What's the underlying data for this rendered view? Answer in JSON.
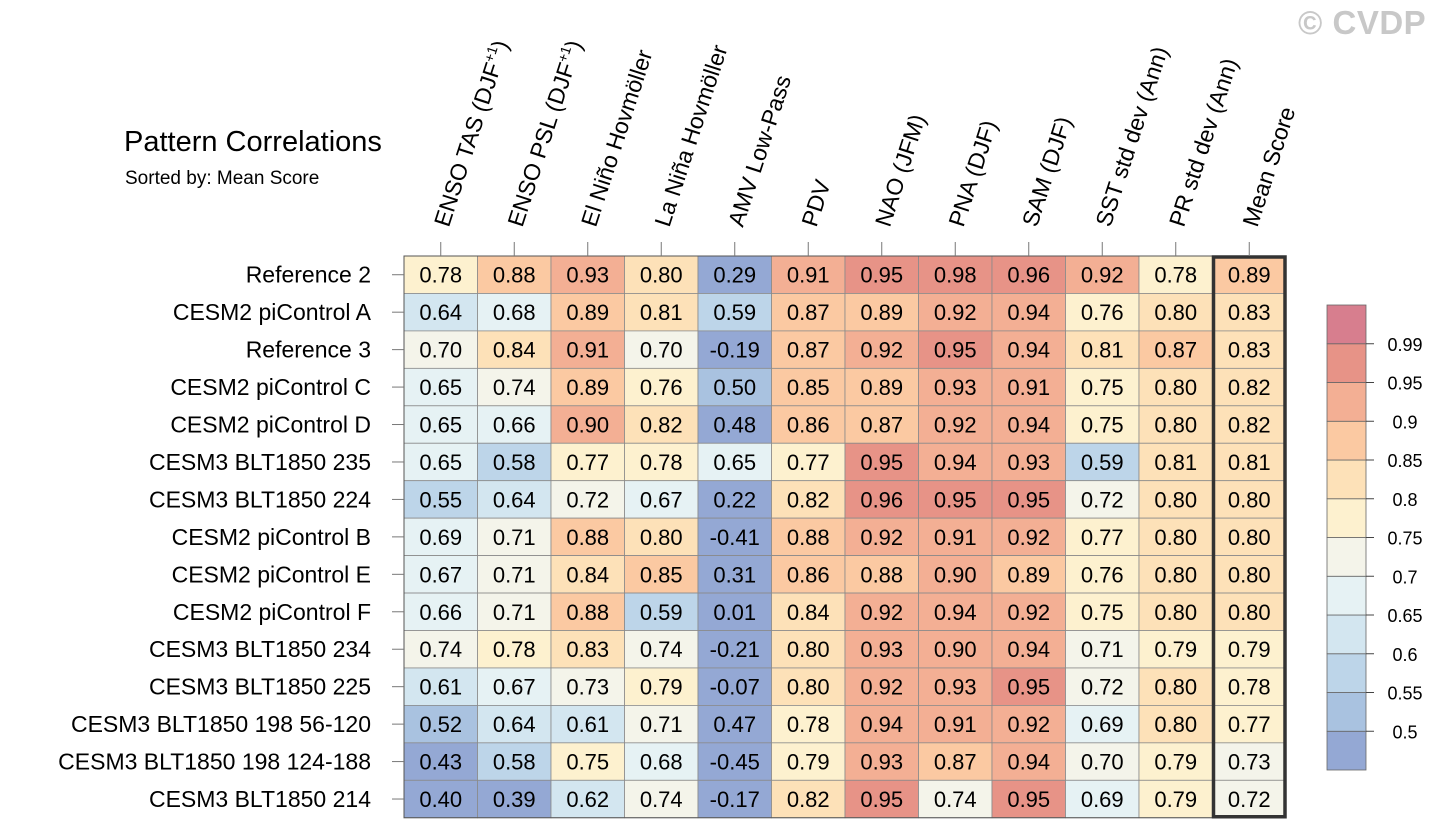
{
  "header": {
    "title": "Pattern Correlations",
    "subtitle": "Sorted by: Mean Score"
  },
  "watermark": "© CVDP",
  "chart_data": {
    "type": "heatmap",
    "title": "Pattern Correlations",
    "subtitle": "Sorted by: Mean Score",
    "columns": [
      {
        "text": "ENSO TAS (DJF",
        "sup": "+1",
        "suffix": ")"
      },
      {
        "text": "ENSO PSL (DJF",
        "sup": "+1",
        "suffix": ")"
      },
      {
        "text": "El Niño Hovmöller"
      },
      {
        "text": "La Niña Hovmöller"
      },
      {
        "text": "AMV Low-Pass"
      },
      {
        "text": "PDV"
      },
      {
        "text": "NAO (JFM)"
      },
      {
        "text": "PNA (DJF)"
      },
      {
        "text": "SAM (DJF)"
      },
      {
        "text": "SST std dev (Ann)"
      },
      {
        "text": "PR std dev (Ann)"
      },
      {
        "text": "Mean Score"
      }
    ],
    "rows": [
      "Reference 2",
      "CESM2 piControl A",
      "Reference 3",
      "CESM2 piControl C",
      "CESM2 piControl D",
      "CESM3 BLT1850 235",
      "CESM3 BLT1850 224",
      "CESM2 piControl B",
      "CESM2 piControl E",
      "CESM2 piControl F",
      "CESM3 BLT1850 234",
      "CESM3 BLT1850 225",
      "CESM3 BLT1850 198 56-120",
      "CESM3 BLT1850 198 124-188",
      "CESM3 BLT1850 214"
    ],
    "values": [
      [
        "0.78",
        "0.88",
        "0.93",
        "0.80",
        "0.29",
        "0.91",
        "0.95",
        "0.98",
        "0.96",
        "0.92",
        "0.78",
        "0.89"
      ],
      [
        "0.64",
        "0.68",
        "0.89",
        "0.81",
        "0.59",
        "0.87",
        "0.89",
        "0.92",
        "0.94",
        "0.76",
        "0.80",
        "0.83"
      ],
      [
        "0.70",
        "0.84",
        "0.91",
        "0.70",
        "-0.19",
        "0.87",
        "0.92",
        "0.95",
        "0.94",
        "0.81",
        "0.87",
        "0.83"
      ],
      [
        "0.65",
        "0.74",
        "0.89",
        "0.76",
        "0.50",
        "0.85",
        "0.89",
        "0.93",
        "0.91",
        "0.75",
        "0.80",
        "0.82"
      ],
      [
        "0.65",
        "0.66",
        "0.90",
        "0.82",
        "0.48",
        "0.86",
        "0.87",
        "0.92",
        "0.94",
        "0.75",
        "0.80",
        "0.82"
      ],
      [
        "0.65",
        "0.58",
        "0.77",
        "0.78",
        "0.65",
        "0.77",
        "0.95",
        "0.94",
        "0.93",
        "0.59",
        "0.81",
        "0.81"
      ],
      [
        "0.55",
        "0.64",
        "0.72",
        "0.67",
        "0.22",
        "0.82",
        "0.96",
        "0.95",
        "0.95",
        "0.72",
        "0.80",
        "0.80"
      ],
      [
        "0.69",
        "0.71",
        "0.88",
        "0.80",
        "-0.41",
        "0.88",
        "0.92",
        "0.91",
        "0.92",
        "0.77",
        "0.80",
        "0.80"
      ],
      [
        "0.67",
        "0.71",
        "0.84",
        "0.85",
        "0.31",
        "0.86",
        "0.88",
        "0.90",
        "0.89",
        "0.76",
        "0.80",
        "0.80"
      ],
      [
        "0.66",
        "0.71",
        "0.88",
        "0.59",
        "0.01",
        "0.84",
        "0.92",
        "0.94",
        "0.92",
        "0.75",
        "0.80",
        "0.80"
      ],
      [
        "0.74",
        "0.78",
        "0.83",
        "0.74",
        "-0.21",
        "0.80",
        "0.93",
        "0.90",
        "0.94",
        "0.71",
        "0.79",
        "0.79"
      ],
      [
        "0.61",
        "0.67",
        "0.73",
        "0.79",
        "-0.07",
        "0.80",
        "0.92",
        "0.93",
        "0.95",
        "0.72",
        "0.80",
        "0.78"
      ],
      [
        "0.52",
        "0.64",
        "0.61",
        "0.71",
        "0.47",
        "0.78",
        "0.94",
        "0.91",
        "0.92",
        "0.69",
        "0.80",
        "0.77"
      ],
      [
        "0.43",
        "0.58",
        "0.75",
        "0.68",
        "-0.45",
        "0.79",
        "0.93",
        "0.87",
        "0.94",
        "0.70",
        "0.79",
        "0.73"
      ],
      [
        "0.40",
        "0.39",
        "0.62",
        "0.74",
        "-0.17",
        "0.82",
        "0.95",
        "0.74",
        "0.95",
        "0.69",
        "0.79",
        "0.72"
      ]
    ],
    "highlighted_column": "Mean Score",
    "colorbar": {
      "levels": [
        "0.5",
        "0.55",
        "0.6",
        "0.65",
        "0.7",
        "0.75",
        "0.8",
        "0.85",
        "0.9",
        "0.95",
        "0.99"
      ],
      "colors": [
        "#94a8d4",
        "#a9c2e0",
        "#bdd5e9",
        "#d3e6f0",
        "#e6f2f4",
        "#f4f4ea",
        "#fdf1cf",
        "#fde1b8",
        "#fbc9a2",
        "#f3af94",
        "#e79387",
        "#d77e8e"
      ]
    }
  }
}
